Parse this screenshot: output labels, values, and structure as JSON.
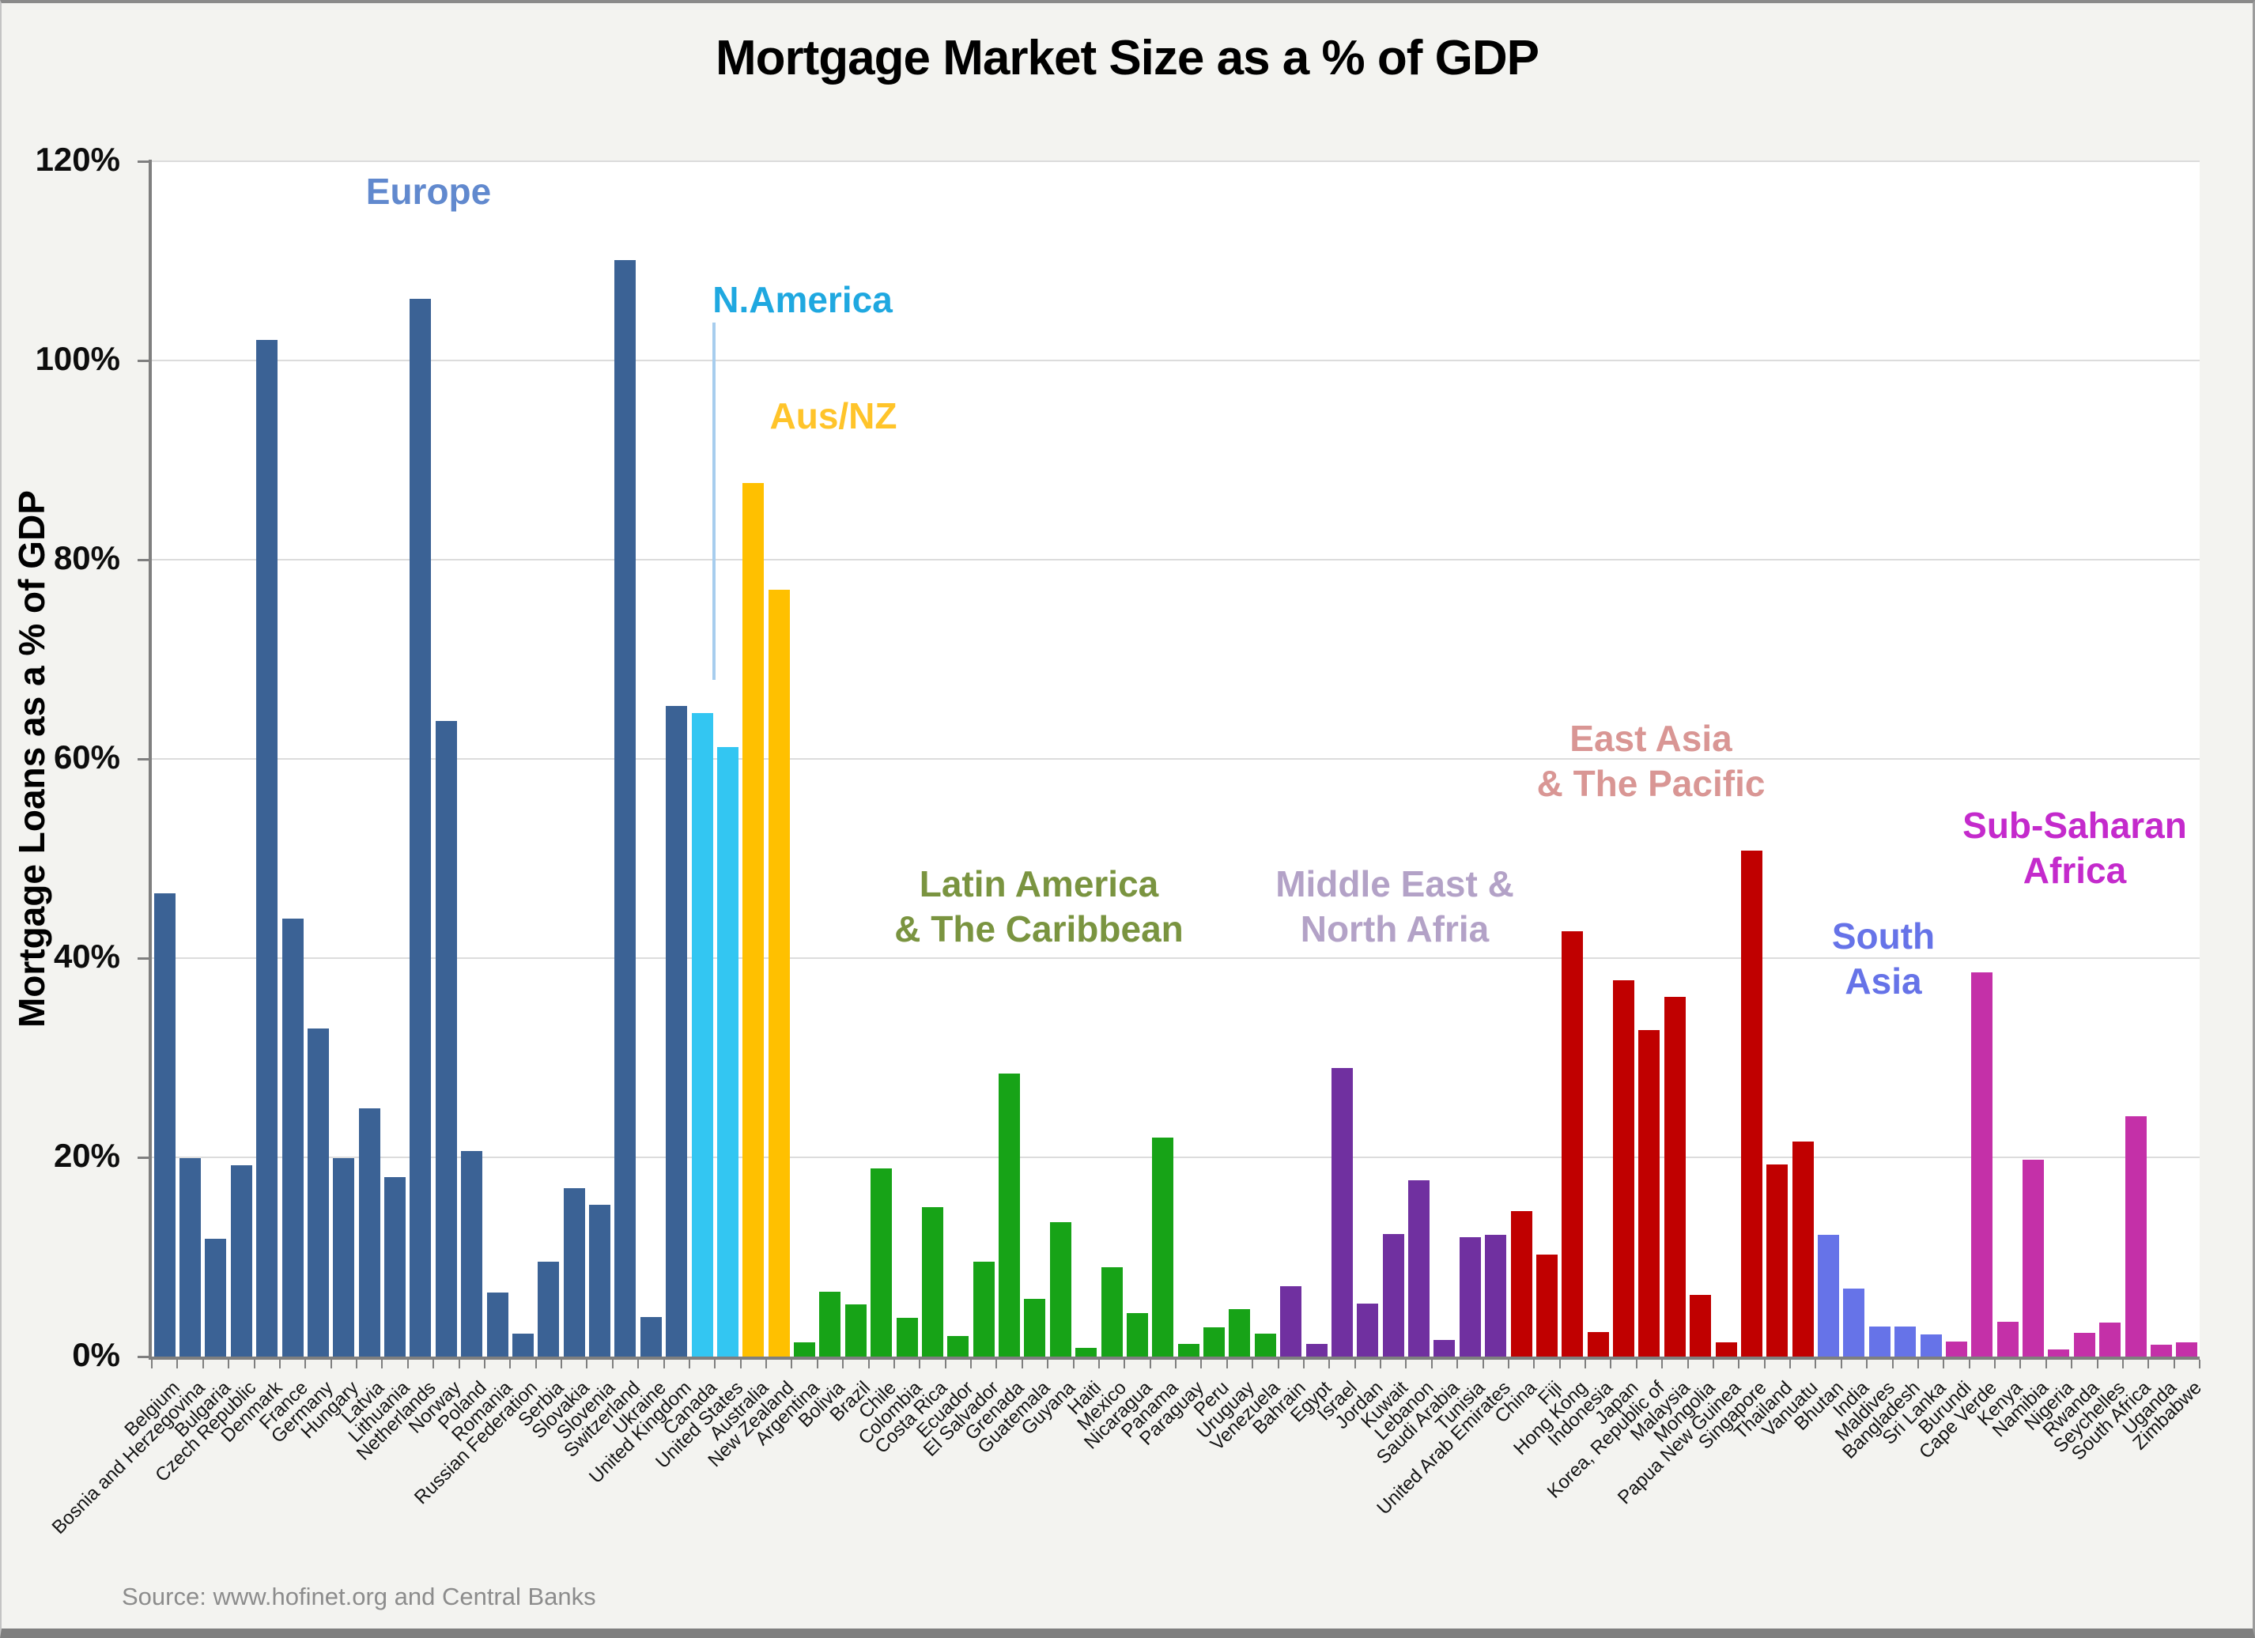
{
  "title": "Mortgage Market Size as a % of GDP",
  "source_note": "Source: www.hofinet.org and Central Banks",
  "chart_data": {
    "type": "bar",
    "title": "Mortgage Market Size as a % of GDP",
    "xlabel": "",
    "ylabel": "Mortgage Loans as a % of GDP",
    "ylim": [
      0,
      120
    ],
    "y_ticks": [
      "0%",
      "20%",
      "40%",
      "60%",
      "80%",
      "100%",
      "120%"
    ],
    "grid": "horizontal gridlines every 20%, light gray, white plot area on light-gray slide",
    "legend_position": "region labels annotated inside plot area",
    "x_tick_label_rotation_deg": 45,
    "regions": [
      {
        "id": "europe",
        "name": "Europe",
        "bar_color": "#3B6295",
        "label_color": "#6189CE",
        "countries": [
          {
            "name": "Belgium",
            "value": 46.5
          },
          {
            "name": "Bosnia and Herzegovina",
            "value": 19.9
          },
          {
            "name": "Bulgaria",
            "value": 11.8
          },
          {
            "name": "Czech Republic",
            "value": 19.2
          },
          {
            "name": "Denmark",
            "value": 102.1
          },
          {
            "name": "France",
            "value": 44.0
          },
          {
            "name": "Germany",
            "value": 32.9
          },
          {
            "name": "Hungary",
            "value": 19.9
          },
          {
            "name": "Latvia",
            "value": 24.9
          },
          {
            "name": "Lithuania",
            "value": 18.0
          },
          {
            "name": "Netherlands",
            "value": 106.2
          },
          {
            "name": "Norway",
            "value": 63.8
          },
          {
            "name": "Poland",
            "value": 20.6
          },
          {
            "name": "Romania",
            "value": 6.4
          },
          {
            "name": "Russian Federation",
            "value": 2.3
          },
          {
            "name": "Serbia",
            "value": 9.5
          },
          {
            "name": "Slovakia",
            "value": 16.9
          },
          {
            "name": "Slovenia",
            "value": 15.2
          },
          {
            "name": "Switzerland",
            "value": 110.1
          },
          {
            "name": "Ukraine",
            "value": 4.0
          },
          {
            "name": "United Kingdom",
            "value": 65.3
          }
        ]
      },
      {
        "id": "n_america",
        "name": "N.America",
        "bar_color": "#33C6F2",
        "label_color": "#1FA8E0",
        "countries": [
          {
            "name": "Canada",
            "value": 64.6
          },
          {
            "name": "United States",
            "value": 61.2
          }
        ]
      },
      {
        "id": "aus_nz",
        "name": "Aus/NZ",
        "bar_color": "#FFC000",
        "label_color": "#FFC42A",
        "countries": [
          {
            "name": "Australia",
            "value": 87.7
          },
          {
            "name": "New Zealand",
            "value": 77.0
          }
        ]
      },
      {
        "id": "latam",
        "name": "Latin America & The Caribbean",
        "bar_color": "#17A317",
        "label_color": "#7A9440",
        "countries": [
          {
            "name": "Argentina",
            "value": 1.4
          },
          {
            "name": "Bolivia",
            "value": 6.5
          },
          {
            "name": "Brazil",
            "value": 5.2
          },
          {
            "name": "Chile",
            "value": 18.9
          },
          {
            "name": "Colombia",
            "value": 3.9
          },
          {
            "name": "Costa Rica",
            "value": 15.0
          },
          {
            "name": "Ecuador",
            "value": 2.1
          },
          {
            "name": "El Salvador",
            "value": 9.5
          },
          {
            "name": "Grenada",
            "value": 28.4
          },
          {
            "name": "Guatemala",
            "value": 5.8
          },
          {
            "name": "Guyana",
            "value": 13.5
          },
          {
            "name": "Haiti",
            "value": 0.9
          },
          {
            "name": "Mexico",
            "value": 9.0
          },
          {
            "name": "Nicaragua",
            "value": 4.4
          },
          {
            "name": "Panama",
            "value": 22.0
          },
          {
            "name": "Paraguay",
            "value": 1.3
          },
          {
            "name": "Peru",
            "value": 2.9
          },
          {
            "name": "Uruguay",
            "value": 4.8
          },
          {
            "name": "Venezuela",
            "value": 2.3
          }
        ]
      },
      {
        "id": "mena",
        "name": "Middle East & North Africa",
        "bar_color": "#7030A0",
        "label_color": "#B3A2C7",
        "countries": [
          {
            "name": "Bahrain",
            "value": 7.1
          },
          {
            "name": "Egypt",
            "value": 1.3
          },
          {
            "name": "Israel",
            "value": 29.0
          },
          {
            "name": "Jordan",
            "value": 5.3
          },
          {
            "name": "Kuwait",
            "value": 12.3
          },
          {
            "name": "Lebanon",
            "value": 17.7
          },
          {
            "name": "Saudi Arabia",
            "value": 1.7
          },
          {
            "name": "Tunisia",
            "value": 12.0
          },
          {
            "name": "United Arab Emirates",
            "value": 12.2
          }
        ]
      },
      {
        "id": "eap",
        "name": "East Asia & The Pacific",
        "bar_color": "#C00000",
        "label_color": "#D99694",
        "countries": [
          {
            "name": "China",
            "value": 14.6
          },
          {
            "name": "Fiji",
            "value": 10.2
          },
          {
            "name": "Hong Kong",
            "value": 42.7
          },
          {
            "name": "Indonesia",
            "value": 2.5
          },
          {
            "name": "Japan",
            "value": 37.8
          },
          {
            "name": "Korea, Republic of",
            "value": 32.8
          },
          {
            "name": "Malaysia",
            "value": 36.1
          },
          {
            "name": "Mongolia",
            "value": 6.2
          },
          {
            "name": "Papua New Guinea",
            "value": 1.4
          },
          {
            "name": "Singapore",
            "value": 50.8
          },
          {
            "name": "Thailand",
            "value": 19.3
          },
          {
            "name": "Vanuatu",
            "value": 21.6
          }
        ]
      },
      {
        "id": "south_asia",
        "name": "South Asia",
        "bar_color": "#6673E8",
        "label_color": "#6673E8",
        "countries": [
          {
            "name": "Bhutan",
            "value": 12.2
          },
          {
            "name": "India",
            "value": 6.8
          },
          {
            "name": "Maldives",
            "value": 3.0
          },
          {
            "name": "Bangladesh",
            "value": 3.0
          },
          {
            "name": "Sri Lanka",
            "value": 2.2
          }
        ]
      },
      {
        "id": "ssa",
        "name": "Sub-Saharan Africa",
        "bar_color": "#C430A8",
        "label_color": "#C42ACC",
        "countries": [
          {
            "name": "Burundi",
            "value": 1.5
          },
          {
            "name": "Cape Verde",
            "value": 38.6
          },
          {
            "name": "Kenya",
            "value": 3.5
          },
          {
            "name": "Namibia",
            "value": 19.8
          },
          {
            "name": "Nigeria",
            "value": 0.7
          },
          {
            "name": "Rwanda",
            "value": 2.4
          },
          {
            "name": "Seychelles",
            "value": 3.4
          },
          {
            "name": "South Africa",
            "value": 24.1
          },
          {
            "name": "Uganda",
            "value": 1.2
          },
          {
            "name": "Zimbabwe",
            "value": 1.4
          }
        ]
      }
    ],
    "annotations": [
      {
        "region": "europe",
        "lines": [
          "Europe"
        ]
      },
      {
        "region": "n_america",
        "lines": [
          "N.America"
        ],
        "has_leader_line": true
      },
      {
        "region": "aus_nz",
        "lines": [
          "Aus/NZ"
        ]
      },
      {
        "region": "latam",
        "lines": [
          "Latin America",
          "& The Caribbean"
        ]
      },
      {
        "region": "mena",
        "lines": [
          "Middle East &",
          "North Afria"
        ]
      },
      {
        "region": "eap",
        "lines": [
          "East Asia",
          "& The Pacific"
        ]
      },
      {
        "region": "south_asia",
        "lines": [
          "South",
          "Asia"
        ]
      },
      {
        "region": "ssa",
        "lines": [
          "Sub-Saharan",
          "Africa"
        ]
      }
    ]
  }
}
